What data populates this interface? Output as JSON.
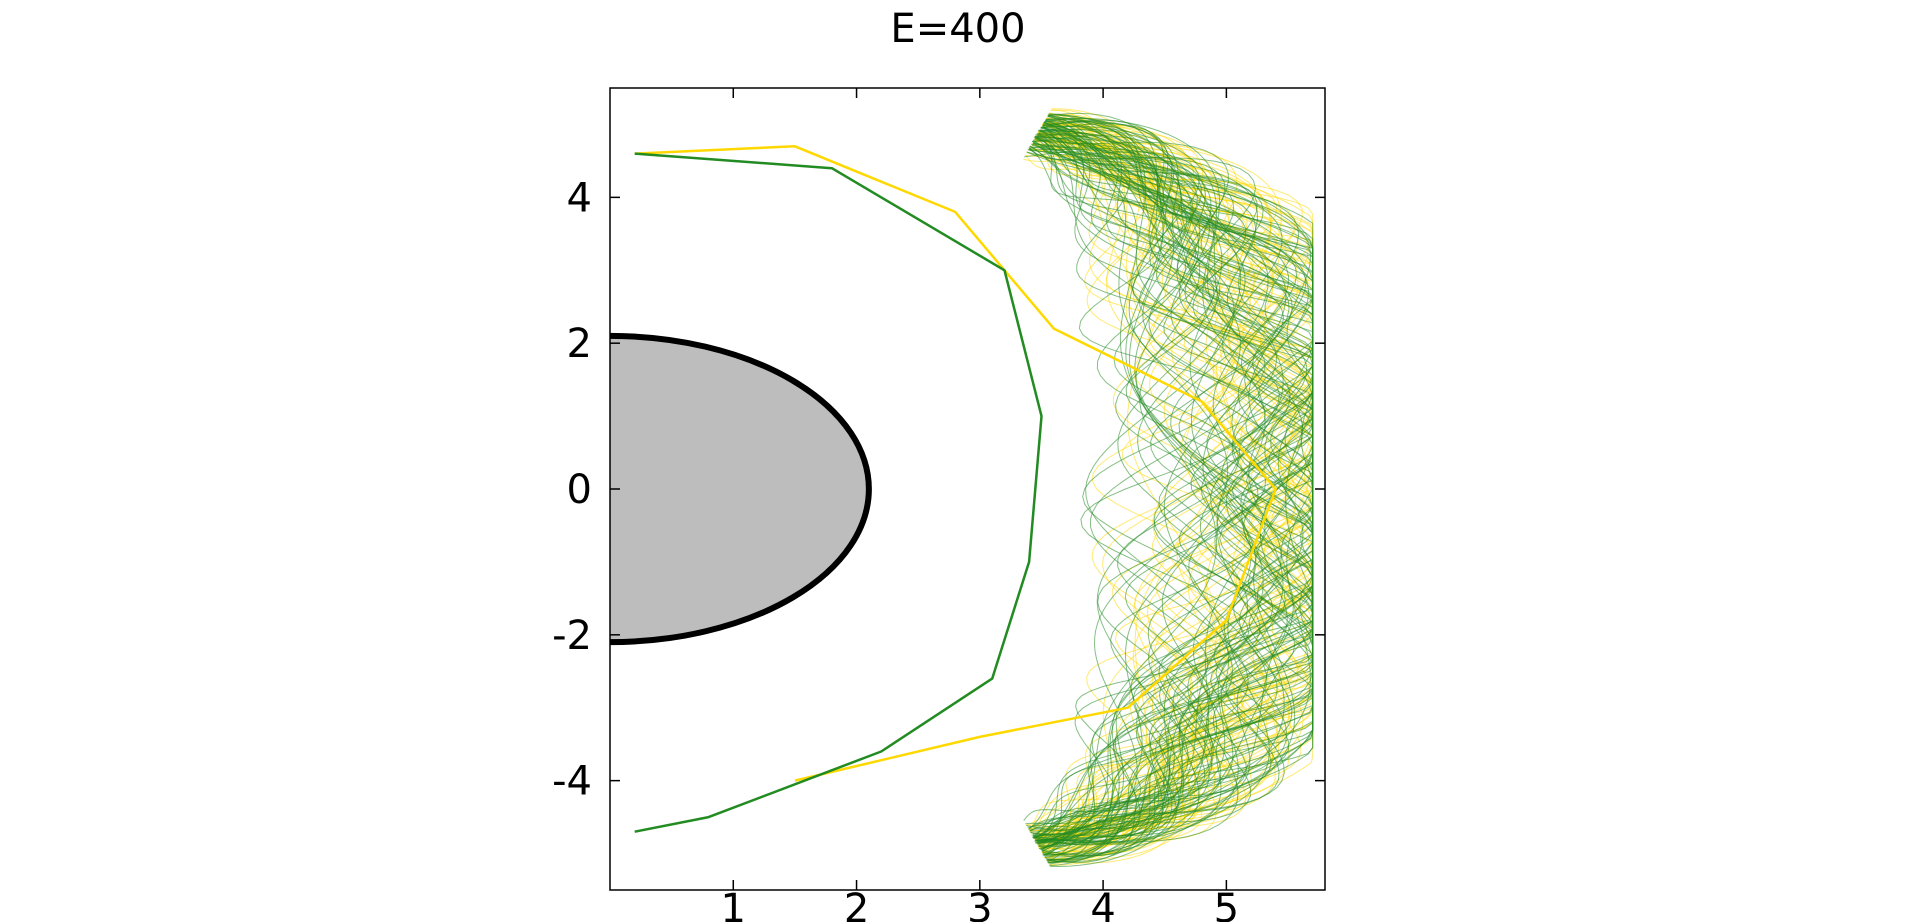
{
  "chart_data": {
    "type": "line",
    "title": "E=400",
    "xlabel": "",
    "ylabel": "",
    "xlim": [
      0,
      5.8
    ],
    "ylim": [
      -5.5,
      5.5
    ],
    "x_ticks": [
      1,
      2,
      3,
      4,
      5
    ],
    "y_ticks": [
      -4,
      -2,
      0,
      2,
      4
    ],
    "x_tick_labels": [
      "1",
      "2",
      "3",
      "4",
      "5"
    ],
    "y_tick_labels": [
      "-4",
      "-2",
      "0",
      "2",
      "4"
    ],
    "grid": false,
    "legend": "none",
    "region": {
      "name": "grey half-ellipse",
      "center": [
        0,
        0
      ],
      "semi_axis_x": 2.1,
      "semi_axis_y": 2.1,
      "fill": "#bdbdbd",
      "edge": "#000000"
    },
    "series": [
      {
        "color": "#ffd800",
        "points": [
          [
            0.2,
            4.6
          ],
          [
            1.5,
            4.7
          ],
          [
            2.8,
            3.8
          ],
          [
            3.6,
            2.2
          ],
          [
            4.8,
            1.2
          ],
          [
            5.4,
            0
          ],
          [
            5.0,
            -1.8
          ],
          [
            4.2,
            -3.0
          ],
          [
            3.0,
            -3.4
          ],
          [
            1.5,
            -4.0
          ]
        ]
      },
      {
        "color": "#228b22",
        "points": [
          [
            0.2,
            4.6
          ],
          [
            1.8,
            4.4
          ],
          [
            3.2,
            3.0
          ],
          [
            3.5,
            1.0
          ],
          [
            3.4,
            -1.0
          ],
          [
            3.1,
            -2.6
          ],
          [
            2.2,
            -3.6
          ],
          [
            0.8,
            -4.5
          ],
          [
            0.2,
            -4.7
          ]
        ]
      }
    ]
  }
}
